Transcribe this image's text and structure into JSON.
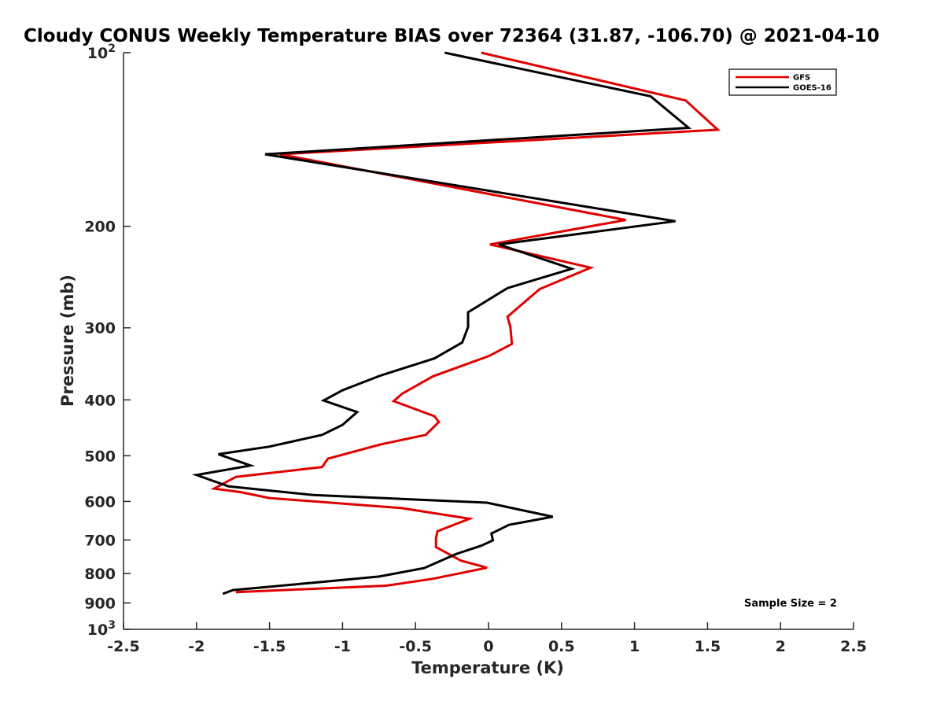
{
  "chart_data": {
    "type": "line",
    "title": "Cloudy CONUS Weekly Temperature BIAS over 72364 (31.87, -106.70) @ 2021-04-10",
    "xlabel": "Temperature (K)",
    "ylabel": "Pressure (mb)",
    "xlim": [
      -2.5,
      2.5
    ],
    "ylim": [
      100,
      1000
    ],
    "y_scale": "log",
    "y_reversed": true,
    "x_ticks": [
      "-2.5",
      "-2",
      "-1.5",
      "-1",
      "-0.5",
      "0",
      "0.5",
      "1",
      "1.5",
      "2",
      "2.5"
    ],
    "y_ticks": [
      {
        "value": 100,
        "base": "10",
        "exp": "2"
      },
      {
        "value": 200,
        "label": "200"
      },
      {
        "value": 300,
        "label": "300"
      },
      {
        "value": 400,
        "label": "400"
      },
      {
        "value": 500,
        "label": "500"
      },
      {
        "value": 600,
        "label": "600"
      },
      {
        "value": 700,
        "label": "700"
      },
      {
        "value": 800,
        "label": "800"
      },
      {
        "value": 900,
        "label": "900"
      },
      {
        "value": 1000,
        "base": "10",
        "exp": "3"
      }
    ],
    "legend_position": "top-right",
    "series": [
      {
        "name": "GFS",
        "color": "#e00000",
        "points": [
          [
            -0.05,
            100
          ],
          [
            1.35,
            121
          ],
          [
            1.57,
            136
          ],
          [
            -1.43,
            150
          ],
          [
            0.94,
            195
          ],
          [
            0.01,
            215
          ],
          [
            0.7,
            236
          ],
          [
            0.35,
            257
          ],
          [
            0.13,
            287
          ],
          [
            0.15,
            299
          ],
          [
            0.16,
            320
          ],
          [
            0.0,
            336
          ],
          [
            -0.38,
            364
          ],
          [
            -0.59,
            390
          ],
          [
            -0.65,
            402
          ],
          [
            -0.37,
            427
          ],
          [
            -0.34,
            437
          ],
          [
            -0.43,
            460
          ],
          [
            -0.74,
            478
          ],
          [
            -1.1,
            506
          ],
          [
            -1.14,
            523
          ],
          [
            -1.73,
            544
          ],
          [
            -1.88,
            570
          ],
          [
            -1.7,
            578
          ],
          [
            -1.5,
            592
          ],
          [
            -0.6,
            616
          ],
          [
            -0.13,
            643
          ],
          [
            -0.35,
            676
          ],
          [
            -0.36,
            696
          ],
          [
            -0.36,
            720
          ],
          [
            -0.19,
            760
          ],
          [
            -0.01,
            782
          ],
          [
            -0.38,
            817
          ],
          [
            -0.7,
            840
          ],
          [
            -1.73,
            862
          ]
        ]
      },
      {
        "name": "GOES-16",
        "color": "#000000",
        "points": [
          [
            -0.3,
            100
          ],
          [
            1.11,
            119
          ],
          [
            1.37,
            135
          ],
          [
            -1.53,
            150
          ],
          [
            1.28,
            196
          ],
          [
            0.07,
            215
          ],
          [
            0.57,
            237
          ],
          [
            0.13,
            256
          ],
          [
            -0.14,
            282
          ],
          [
            -0.14,
            299
          ],
          [
            -0.18,
            318
          ],
          [
            -0.37,
            339
          ],
          [
            -0.74,
            363
          ],
          [
            -1.0,
            385
          ],
          [
            -1.13,
            401
          ],
          [
            -0.9,
            420
          ],
          [
            -1.0,
            442
          ],
          [
            -1.14,
            460
          ],
          [
            -1.5,
            482
          ],
          [
            -1.85,
            497
          ],
          [
            -1.63,
            520
          ],
          [
            -2.0,
            540
          ],
          [
            -1.78,
            565
          ],
          [
            -1.2,
            585
          ],
          [
            -0.01,
            603
          ],
          [
            0.44,
            638
          ],
          [
            0.14,
            659
          ],
          [
            0.02,
            682
          ],
          [
            0.03,
            701
          ],
          [
            -0.05,
            716
          ],
          [
            -0.22,
            740
          ],
          [
            -0.44,
            783
          ],
          [
            -0.75,
            810
          ],
          [
            -1.2,
            830
          ],
          [
            -1.75,
            855
          ],
          [
            -1.82,
            868
          ]
        ]
      }
    ],
    "annotation": "Sample Size = 2"
  }
}
